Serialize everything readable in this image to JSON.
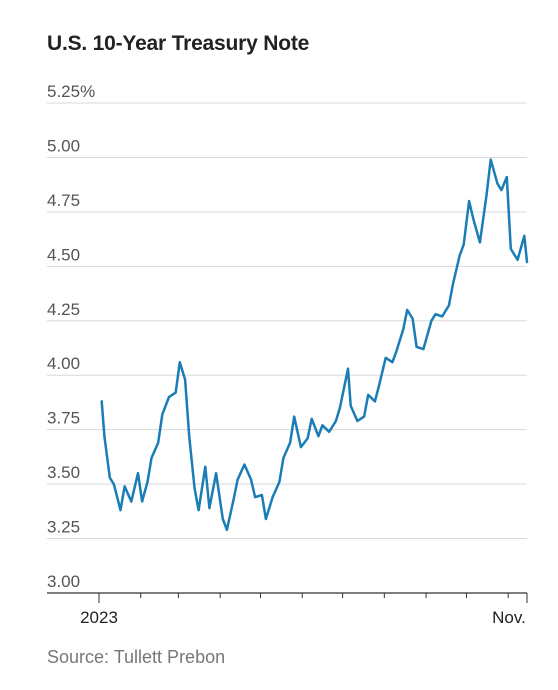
{
  "title": "U.S. 10-Year Treasury Note",
  "source": "Source: Tullett Prebon",
  "chart_data": {
    "type": "line",
    "title": "U.S. 10-Year Treasury Note",
    "ylim": [
      3.0,
      5.25
    ],
    "y_ticks": [
      "5.25%",
      "5.00",
      "4.75",
      "4.50",
      "4.25",
      "4.00",
      "3.75",
      "3.50",
      "3.25",
      "3.00"
    ],
    "y_tick_values": [
      5.25,
      5.0,
      4.75,
      4.5,
      4.25,
      4.0,
      3.75,
      3.5,
      3.25,
      3.0
    ],
    "x_labels": [
      "2023",
      "Nov."
    ],
    "grid": true,
    "line_color": "#1a7db5",
    "series": [
      {
        "x": [
          "2023-01-03",
          "2023-01-05",
          "2023-01-09",
          "2023-01-12",
          "2023-01-17",
          "2023-01-20",
          "2023-01-25",
          "2023-01-30",
          "2023-02-02",
          "2023-02-06",
          "2023-02-09",
          "2023-02-14",
          "2023-02-17",
          "2023-02-22",
          "2023-02-27",
          "2023-03-02",
          "2023-03-06",
          "2023-03-09",
          "2023-03-13",
          "2023-03-16",
          "2023-03-21",
          "2023-03-24",
          "2023-03-29",
          "2023-04-03",
          "2023-04-06",
          "2023-04-11",
          "2023-04-14",
          "2023-04-19",
          "2023-04-24",
          "2023-04-27",
          "2023-05-02",
          "2023-05-05",
          "2023-05-10",
          "2023-05-15",
          "2023-05-18",
          "2023-05-23",
          "2023-05-26",
          "2023-05-31",
          "2023-06-05",
          "2023-06-08",
          "2023-06-13",
          "2023-06-16",
          "2023-06-21",
          "2023-06-26",
          "2023-06-29",
          "2023-07-05",
          "2023-07-07",
          "2023-07-12",
          "2023-07-17",
          "2023-07-20",
          "2023-07-25",
          "2023-07-28",
          "2023-08-02",
          "2023-08-07",
          "2023-08-10",
          "2023-08-15",
          "2023-08-18",
          "2023-08-22",
          "2023-08-25",
          "2023-08-30",
          "2023-09-05",
          "2023-09-08",
          "2023-09-13",
          "2023-09-18",
          "2023-09-21",
          "2023-09-26",
          "2023-09-29",
          "2023-10-03",
          "2023-10-06",
          "2023-10-11",
          "2023-10-16",
          "2023-10-19",
          "2023-10-24",
          "2023-10-27",
          "2023-10-31",
          "2023-11-03",
          "2023-11-08",
          "2023-11-13",
          "2023-11-15"
        ],
        "values": [
          3.88,
          3.72,
          3.53,
          3.5,
          3.38,
          3.49,
          3.42,
          3.55,
          3.42,
          3.51,
          3.62,
          3.69,
          3.82,
          3.9,
          3.92,
          4.06,
          3.98,
          3.72,
          3.48,
          3.38,
          3.58,
          3.39,
          3.55,
          3.34,
          3.29,
          3.43,
          3.52,
          3.59,
          3.52,
          3.44,
          3.45,
          3.34,
          3.44,
          3.51,
          3.62,
          3.69,
          3.81,
          3.67,
          3.71,
          3.8,
          3.72,
          3.77,
          3.74,
          3.79,
          3.85,
          4.03,
          3.86,
          3.79,
          3.81,
          3.91,
          3.88,
          3.95,
          4.08,
          4.06,
          4.11,
          4.21,
          4.3,
          4.26,
          4.13,
          4.12,
          4.25,
          4.28,
          4.27,
          4.32,
          4.42,
          4.55,
          4.6,
          4.8,
          4.72,
          4.61,
          4.83,
          4.99,
          4.88,
          4.85,
          4.91,
          4.58,
          4.53,
          4.64,
          4.52
        ]
      }
    ]
  }
}
